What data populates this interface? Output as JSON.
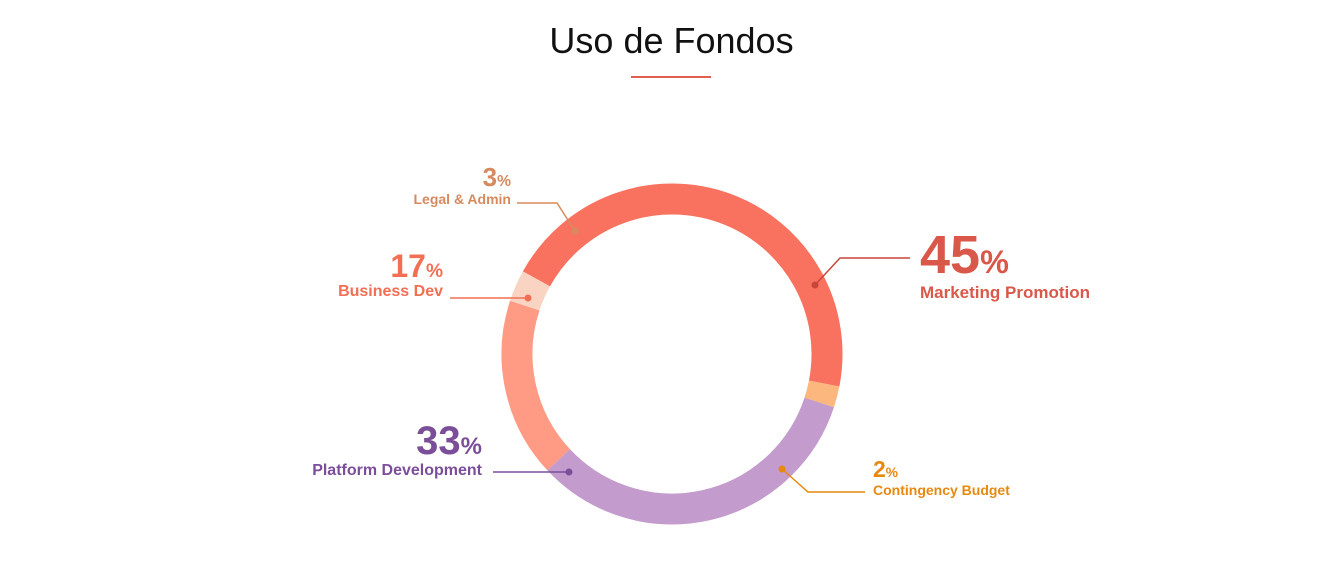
{
  "title": "Uso de Fondos",
  "colors": {
    "title_rule": "#e06050"
  },
  "chart_data": {
    "type": "pie",
    "title": "Uso de Fondos",
    "donut": true,
    "unit": "%",
    "slices": [
      {
        "key": "marketing",
        "name": "Marketing Promotion",
        "value": 45,
        "value_label": "45",
        "color": "#f9725f",
        "text_color": "#d9584a",
        "line_color": "#c9463a"
      },
      {
        "key": "contingency",
        "name": "Contingency Budget",
        "value": 2,
        "value_label": "2",
        "color": "#fbb77d",
        "text_color": "#e8890f",
        "line_color": "#e8890f"
      },
      {
        "key": "platform",
        "name": "Platform Development",
        "value": 33,
        "value_label": "33",
        "color": "#c39bcc",
        "text_color": "#7b4e9a",
        "line_color": "#7b4e9a"
      },
      {
        "key": "business",
        "name": "Business Dev",
        "value": 17,
        "value_label": "17",
        "color": "#ff9a84",
        "text_color": "#f26f54",
        "line_color": "#f26f54"
      },
      {
        "key": "legal",
        "name": "Legal & Admin",
        "value": 3,
        "value_label": "3",
        "color": "#fad4c2",
        "text_color": "#d78a5d",
        "line_color": "#d78a5d"
      }
    ]
  }
}
